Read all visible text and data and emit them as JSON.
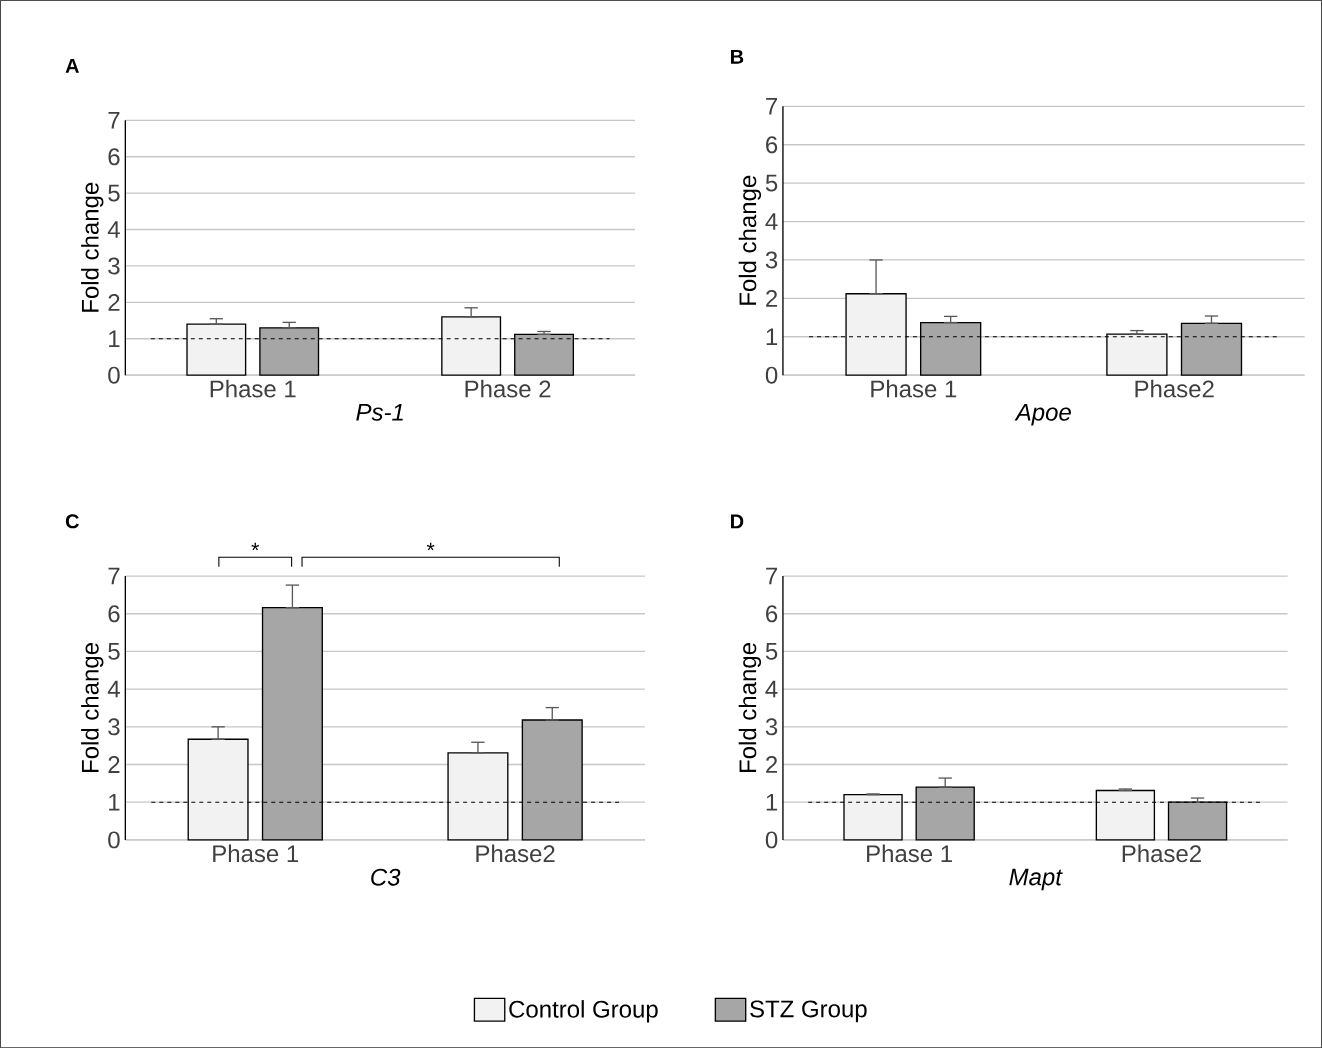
{
  "chart_data": [
    {
      "type": "bar",
      "title": "A",
      "xlabel": "Ps-1",
      "ylabel": "Fold change",
      "categories": [
        "Phase 1",
        "Phase 2"
      ],
      "series": [
        {
          "color": "#f2f2f2",
          "values": [
            1.4,
            1.6
          ],
          "errors": [
            [
              1.4,
              1.55
            ],
            [
              1.6,
              1.85
            ]
          ]
        },
        {
          "color": "#a6a6a6",
          "values": [
            1.3,
            1.12
          ],
          "errors": [
            [
              1.3,
              1.45
            ],
            [
              1.12,
              1.2
            ]
          ]
        }
      ],
      "ylim": [
        0,
        7
      ],
      "yticks": [
        0,
        1,
        2,
        3,
        4,
        5,
        6,
        7
      ],
      "grid": "y",
      "ref_lines": [
        {
          "axis": "y",
          "value": 1,
          "color": "#000000",
          "line_style": "dashed"
        }
      ]
    },
    {
      "type": "bar",
      "title": "B",
      "xlabel": "Apoe",
      "ylabel": "Fold change",
      "categories": [
        "Phase 1",
        "Phase2"
      ],
      "series": [
        {
          "color": "#f2f2f2",
          "values": [
            2.12,
            1.07
          ],
          "errors": [
            [
              2.12,
              3.0
            ],
            [
              1.07,
              1.16
            ]
          ]
        },
        {
          "color": "#a6a6a6",
          "values": [
            1.37,
            1.35
          ],
          "errors": [
            [
              1.37,
              1.53
            ],
            [
              1.35,
              1.54
            ]
          ]
        }
      ],
      "ylim": [
        0,
        7
      ],
      "yticks": [
        0,
        1,
        2,
        3,
        4,
        5,
        6,
        7
      ],
      "grid": "y",
      "ref_lines": [
        {
          "axis": "y",
          "value": 1,
          "color": "#000000",
          "line_style": "dashed"
        }
      ]
    },
    {
      "type": "bar",
      "title": "C",
      "xlabel": "C3",
      "ylabel": "Fold change",
      "categories": [
        "Phase 1",
        "Phase2"
      ],
      "series": [
        {
          "name": "Control Group",
          "color": "#f2f2f2",
          "values": [
            2.67,
            2.31
          ],
          "errors": [
            [
              2.67,
              3.0
            ],
            [
              2.31,
              2.59
            ]
          ]
        },
        {
          "name": "STZ Group",
          "color": "#a6a6a6",
          "values": [
            6.16,
            3.18
          ],
          "errors": [
            [
              6.16,
              6.76
            ],
            [
              3.18,
              3.51
            ]
          ]
        }
      ],
      "ylim": [
        0,
        7
      ],
      "yticks": [
        0,
        1,
        2,
        3,
        4,
        5,
        6,
        7
      ],
      "grid": "y",
      "legend": "bottom",
      "annotations": [
        "*",
        "*"
      ],
      "ref_lines": [
        {
          "axis": "y",
          "value": 1,
          "color": "#000000",
          "line_style": "dashed"
        }
      ]
    },
    {
      "type": "bar",
      "title": "D",
      "xlabel": "Mapt",
      "ylabel": "Fold change",
      "categories": [
        "Phase 1",
        "Phase2"
      ],
      "series": [
        {
          "color": "#f2f2f2",
          "values": [
            1.2,
            1.31
          ],
          "errors": [
            [
              1.2,
              1.22
            ],
            [
              1.31,
              1.35
            ]
          ]
        },
        {
          "color": "#a6a6a6",
          "values": [
            1.4,
            1.0
          ],
          "errors": [
            [
              1.4,
              1.64
            ],
            [
              1.0,
              1.11
            ]
          ]
        }
      ],
      "ylim": [
        0,
        7
      ],
      "yticks": [
        0,
        1,
        2,
        3,
        4,
        5,
        6,
        7
      ],
      "grid": "y",
      "ref_lines": [
        {
          "axis": "y",
          "value": 1,
          "color": "#000000",
          "line_style": "dashed"
        }
      ]
    }
  ]
}
